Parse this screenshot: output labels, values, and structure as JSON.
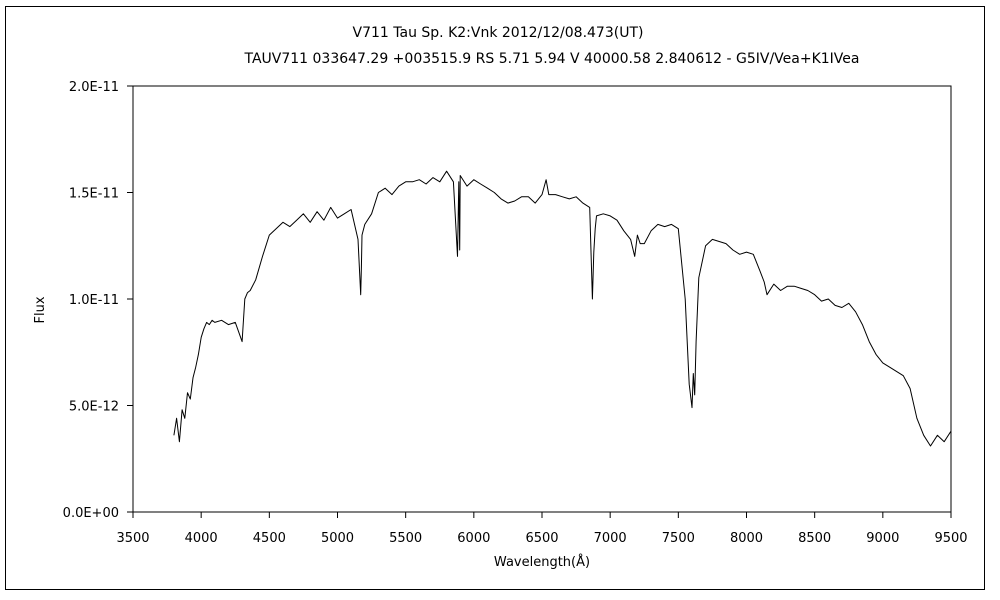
{
  "chart_data": {
    "type": "line",
    "title": "V711 Tau    Sp. K2:Vnk    2012/12/08.473(UT)",
    "subtitle": "TAUV711 033647.29 +003515.9 RS 5.71 5.94 V 40000.58 2.840612 - G5IV/Vea+K1IVea",
    "xlabel": "Wavelength(Å)",
    "ylabel": "Flux",
    "xlim": [
      3500,
      9500
    ],
    "ylim": [
      0,
      2e-11
    ],
    "xticks": [
      3500,
      4000,
      4500,
      5000,
      5500,
      6000,
      6500,
      7000,
      7500,
      8000,
      8500,
      9000,
      9500
    ],
    "xtick_labels": [
      "3500",
      "4000",
      "4500",
      "5000",
      "5500",
      "6000",
      "6500",
      "7000",
      "7500",
      "8000",
      "8500",
      "9000",
      "9500"
    ],
    "yticks": [
      0,
      5e-12,
      1e-11,
      1.5e-11,
      2e-11
    ],
    "ytick_labels": [
      "0.0E+00",
      "5.0E-12",
      "1.0E-11",
      "1.5E-11",
      "2.0E-11"
    ],
    "grid": false,
    "line_color": "#000000",
    "series": [
      {
        "x": [
          3800,
          3820,
          3840,
          3860,
          3880,
          3900,
          3920,
          3940,
          3960,
          3980,
          4000,
          4020,
          4040,
          4060,
          4080,
          4100,
          4150,
          4200,
          4250,
          4300,
          4320,
          4340,
          4360,
          4400,
          4450,
          4500,
          4550,
          4600,
          4650,
          4700,
          4750,
          4800,
          4850,
          4900,
          4950,
          5000,
          5050,
          5100,
          5150,
          5170,
          5175,
          5180,
          5200,
          5250,
          5300,
          5350,
          5400,
          5450,
          5500,
          5550,
          5600,
          5650,
          5700,
          5750,
          5800,
          5850,
          5880,
          5890,
          5896,
          5900,
          5950,
          6000,
          6050,
          6100,
          6150,
          6200,
          6250,
          6300,
          6350,
          6400,
          6450,
          6500,
          6530,
          6550,
          6600,
          6650,
          6700,
          6750,
          6800,
          6850,
          6870,
          6880,
          6890,
          6900,
          6950,
          7000,
          7050,
          7100,
          7150,
          7180,
          7200,
          7220,
          7250,
          7300,
          7350,
          7400,
          7450,
          7500,
          7550,
          7580,
          7600,
          7610,
          7620,
          7630,
          7650,
          7700,
          7750,
          7800,
          7850,
          7900,
          7950,
          8000,
          8050,
          8100,
          8130,
          8150,
          8200,
          8250,
          8300,
          8350,
          8400,
          8450,
          8500,
          8550,
          8600,
          8650,
          8700,
          8750,
          8800,
          8850,
          8900,
          8950,
          9000,
          9050,
          9100,
          9150,
          9200,
          9250,
          9300,
          9350,
          9400,
          9450,
          9500
        ],
        "y": [
          3.6e-12,
          4.4e-12,
          3.3e-12,
          4.8e-12,
          4.4e-12,
          5.6e-12,
          5.3e-12,
          6.3e-12,
          6.8e-12,
          7.4e-12,
          8.2e-12,
          8.6e-12,
          8.9e-12,
          8.8e-12,
          9e-12,
          8.9e-12,
          9e-12,
          8.8e-12,
          8.9e-12,
          8e-12,
          1e-11,
          1.03e-11,
          1.04e-11,
          1.09e-11,
          1.2e-11,
          1.3e-11,
          1.33e-11,
          1.36e-11,
          1.34e-11,
          1.37e-11,
          1.4e-11,
          1.36e-11,
          1.41e-11,
          1.37e-11,
          1.43e-11,
          1.38e-11,
          1.4e-11,
          1.42e-11,
          1.28e-11,
          1.02e-11,
          1.15e-11,
          1.3e-11,
          1.35e-11,
          1.4e-11,
          1.5e-11,
          1.52e-11,
          1.49e-11,
          1.53e-11,
          1.55e-11,
          1.55e-11,
          1.56e-11,
          1.54e-11,
          1.57e-11,
          1.55e-11,
          1.6e-11,
          1.55e-11,
          1.2e-11,
          1.55e-11,
          1.23e-11,
          1.58e-11,
          1.53e-11,
          1.56e-11,
          1.54e-11,
          1.52e-11,
          1.5e-11,
          1.47e-11,
          1.45e-11,
          1.46e-11,
          1.48e-11,
          1.48e-11,
          1.45e-11,
          1.49e-11,
          1.56e-11,
          1.49e-11,
          1.49e-11,
          1.48e-11,
          1.47e-11,
          1.48e-11,
          1.45e-11,
          1.43e-11,
          1e-11,
          1.22e-11,
          1.33e-11,
          1.39e-11,
          1.4e-11,
          1.39e-11,
          1.37e-11,
          1.32e-11,
          1.28e-11,
          1.2e-11,
          1.3e-11,
          1.26e-11,
          1.26e-11,
          1.32e-11,
          1.35e-11,
          1.34e-11,
          1.35e-11,
          1.33e-11,
          1e-11,
          6e-12,
          4.9e-12,
          6.5e-12,
          5.5e-12,
          8e-12,
          1.1e-11,
          1.25e-11,
          1.28e-11,
          1.27e-11,
          1.26e-11,
          1.23e-11,
          1.21e-11,
          1.22e-11,
          1.21e-11,
          1.13e-11,
          1.08e-11,
          1.02e-11,
          1.07e-11,
          1.04e-11,
          1.06e-11,
          1.06e-11,
          1.05e-11,
          1.04e-11,
          1.02e-11,
          9.9e-12,
          1e-11,
          9.7e-12,
          9.6e-12,
          9.8e-12,
          9.4e-12,
          8.8e-12,
          8e-12,
          7.4e-12,
          7e-12,
          6.8e-12,
          6.6e-12,
          6.4e-12,
          5.8e-12,
          4.4e-12,
          3.6e-12,
          3.1e-12,
          3.6e-12,
          3.3e-12,
          3.8e-12
        ]
      }
    ]
  }
}
